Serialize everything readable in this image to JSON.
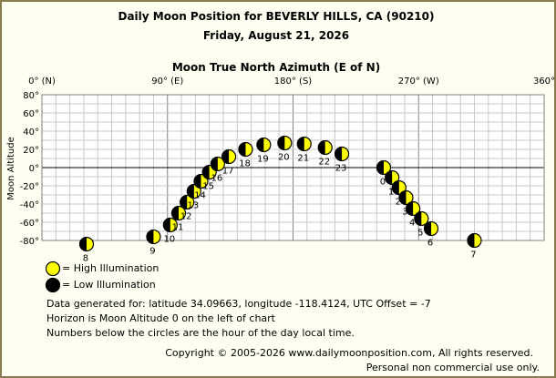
{
  "header": {
    "title": "Daily Moon Position for BEVERLY HILLS, CA (90210)",
    "date": "Friday, August 21, 2026"
  },
  "chart_data": {
    "type": "scatter",
    "xlabel": "Moon True North Azimuth (E of N)",
    "ylabel": "Moon Altitude",
    "xlim": [
      0,
      360
    ],
    "ylim": [
      -80,
      80
    ],
    "x_ticks": [
      {
        "value": 0,
        "label": "0° (N)"
      },
      {
        "value": 90,
        "label": "90° (E)"
      },
      {
        "value": 180,
        "label": "180° (S)"
      },
      {
        "value": 270,
        "label": "270° (W)"
      },
      {
        "value": 360,
        "label": "360°"
      }
    ],
    "y_ticks": [
      {
        "value": 80,
        "label": "80°"
      },
      {
        "value": 60,
        "label": "60°"
      },
      {
        "value": 40,
        "label": "40°"
      },
      {
        "value": 20,
        "label": "20°"
      },
      {
        "value": 0,
        "label": "0°"
      },
      {
        "value": -20,
        "label": "-20°"
      },
      {
        "value": -40,
        "label": "-40°"
      },
      {
        "value": -60,
        "label": "-60°"
      },
      {
        "value": -80,
        "label": "-80°"
      }
    ],
    "grid": true,
    "points": [
      {
        "hour": "0",
        "x": 245,
        "y": 0
      },
      {
        "hour": "1",
        "x": 251,
        "y": -11
      },
      {
        "hour": "2",
        "x": 256,
        "y": -22
      },
      {
        "hour": "3",
        "x": 261,
        "y": -33
      },
      {
        "hour": "4",
        "x": 266,
        "y": -45
      },
      {
        "hour": "5",
        "x": 272,
        "y": -56
      },
      {
        "hour": "6",
        "x": 279,
        "y": -67
      },
      {
        "hour": "7",
        "x": 310,
        "y": -80
      },
      {
        "hour": "8",
        "x": 32,
        "y": -84
      },
      {
        "hour": "9",
        "x": 80,
        "y": -76
      },
      {
        "hour": "10",
        "x": 92,
        "y": -63
      },
      {
        "hour": "11",
        "x": 98,
        "y": -50
      },
      {
        "hour": "12",
        "x": 104,
        "y": -38
      },
      {
        "hour": "13",
        "x": 109,
        "y": -26
      },
      {
        "hour": "14",
        "x": 114,
        "y": -15
      },
      {
        "hour": "15",
        "x": 120,
        "y": -5
      },
      {
        "hour": "16",
        "x": 126,
        "y": 4
      },
      {
        "hour": "17",
        "x": 134,
        "y": 12
      },
      {
        "hour": "18",
        "x": 146,
        "y": 20
      },
      {
        "hour": "19",
        "x": 159,
        "y": 25
      },
      {
        "hour": "20",
        "x": 174,
        "y": 27
      },
      {
        "hour": "21",
        "x": 188,
        "y": 26
      },
      {
        "hour": "22",
        "x": 203,
        "y": 22
      },
      {
        "hour": "23",
        "x": 215,
        "y": 15
      }
    ]
  },
  "legend": {
    "high": "= High Illumination",
    "low": "= Low Illumination"
  },
  "notes": {
    "line1": "Data generated for: latitude 34.09663, longitude -118.4124, UTC Offset = -7",
    "line2": "Horizon is Moon Altitude 0 on the left of chart",
    "line3": "Numbers below the circles are the hour of the day local time."
  },
  "footer": {
    "copyright": "Copyright © 2005-2026 www.dailymoonposition.com, All rights reserved.",
    "personal": "Personal non commercial use only."
  },
  "colors": {
    "high": "#ffff00",
    "low": "#000000",
    "grid": "#c8c8c8",
    "border": "#8a7a50"
  }
}
